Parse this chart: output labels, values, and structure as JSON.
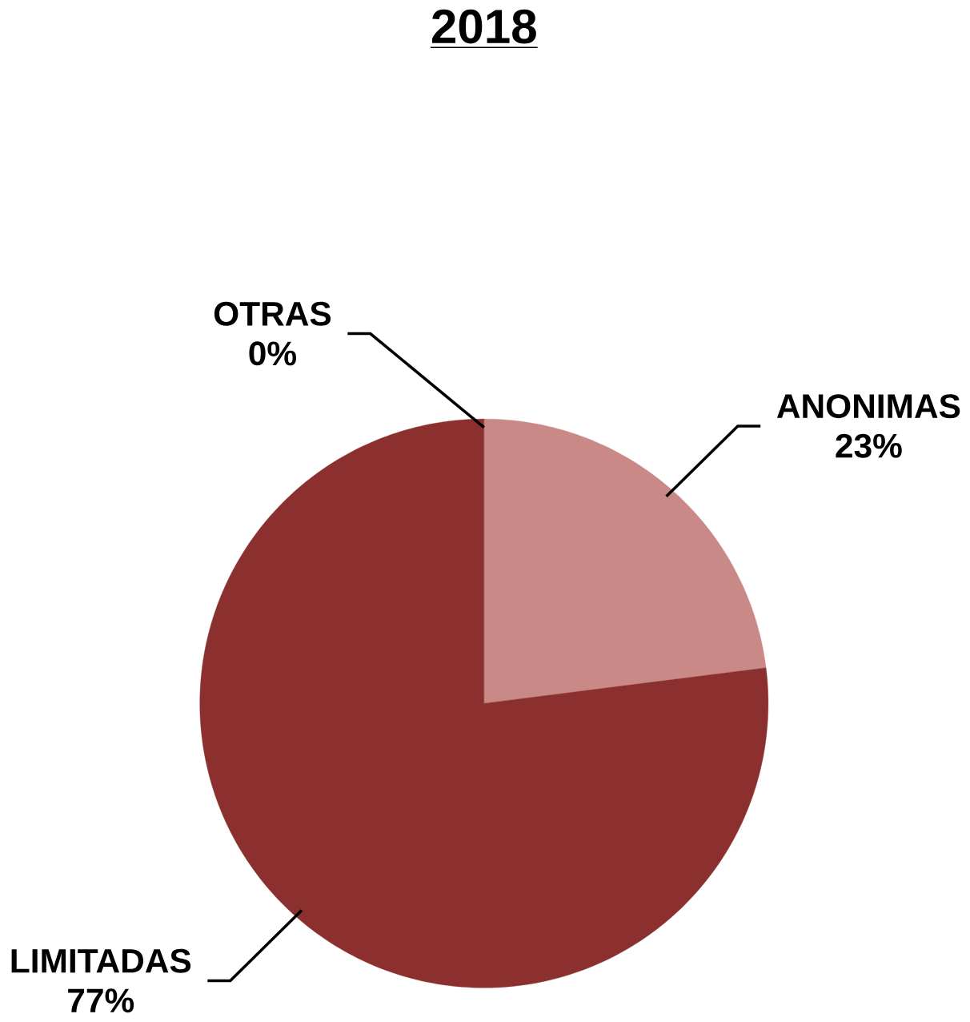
{
  "chart_data": {
    "type": "pie",
    "title": "2018",
    "categories": [
      "ANONIMAS",
      "LIMITADAS",
      "OTRAS"
    ],
    "values": [
      23,
      77,
      0
    ],
    "colors": [
      "#c98a87",
      "#8b302e",
      "#a04545"
    ],
    "value_labels": [
      "23%",
      "77%",
      "0%"
    ]
  }
}
